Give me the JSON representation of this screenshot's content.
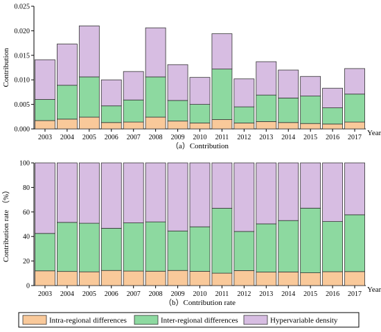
{
  "chart_data": [
    {
      "type": "bar",
      "stacked": true,
      "caption": "（a）Contribution",
      "xlabel": "Year",
      "ylabel": "Contribution",
      "ylim": [
        0,
        0.025
      ],
      "yticks": [
        "0.000",
        "0.005",
        "0.010",
        "0.015",
        "0.020",
        "0.025"
      ],
      "categories": [
        "2003",
        "2004",
        "2005",
        "2006",
        "2007",
        "2008",
        "2009",
        "2010",
        "2011",
        "2012",
        "2013",
        "2014",
        "2015",
        "2016",
        "2017"
      ],
      "series": [
        {
          "name": "Intra-regional differences",
          "values": [
            0.0017,
            0.002,
            0.0024,
            0.0013,
            0.0014,
            0.0024,
            0.0016,
            0.0012,
            0.0019,
            0.0012,
            0.0015,
            0.0013,
            0.0011,
            0.001,
            0.0014
          ]
        },
        {
          "name": "Inter-regional differences",
          "values": [
            0.0043,
            0.0069,
            0.0082,
            0.0034,
            0.0045,
            0.0082,
            0.0042,
            0.0038,
            0.0103,
            0.0033,
            0.0054,
            0.005,
            0.0056,
            0.0033,
            0.0057
          ]
        },
        {
          "name": "Hypervariable density",
          "values": [
            0.0081,
            0.0084,
            0.0104,
            0.0053,
            0.0058,
            0.01,
            0.0073,
            0.0055,
            0.0072,
            0.0057,
            0.0068,
            0.0057,
            0.004,
            0.004,
            0.0052
          ]
        }
      ]
    },
    {
      "type": "bar",
      "stacked": true,
      "caption": "（b）Contribution rate",
      "xlabel": "Year",
      "ylabel": "Contribution rate （%）",
      "ylim": [
        0,
        100
      ],
      "yticks": [
        "0",
        "20",
        "40",
        "60",
        "80",
        "100"
      ],
      "categories": [
        "2003",
        "2004",
        "2005",
        "2006",
        "2007",
        "2008",
        "2009",
        "2010",
        "2011",
        "2012",
        "2013",
        "2014",
        "2015",
        "2016",
        "2017"
      ],
      "series": [
        {
          "name": "Intra-regional differences",
          "values": [
            12,
            11.5,
            11.2,
            12.3,
            11.8,
            11.7,
            12.3,
            11.6,
            10.1,
            12.2,
            11.0,
            11.1,
            10.4,
            11.3,
            11.4
          ]
        },
        {
          "name": "Inter-regional differences",
          "values": [
            30.5,
            40,
            39.6,
            34.4,
            39.3,
            40.2,
            32.2,
            36.3,
            52.9,
            31.9,
            39.3,
            41.9,
            52.7,
            40.9,
            46.3
          ]
        },
        {
          "name": "Hypervariable density",
          "values": [
            57.5,
            48.5,
            49.2,
            53.3,
            48.9,
            48.1,
            55.5,
            52.1,
            37.0,
            55.9,
            49.7,
            47.0,
            36.9,
            47.8,
            42.3
          ]
        }
      ]
    }
  ],
  "legend": {
    "items": [
      {
        "label": "Intra-regional differences",
        "color": "#f9c99a"
      },
      {
        "label": "Inter-regional differences",
        "color": "#8dd9a0"
      },
      {
        "label": "Hypervariable density",
        "color": "#d7bde2"
      }
    ]
  },
  "colors": {
    "intra": "#f9c99a",
    "inter": "#8dd9a0",
    "hyper": "#d7bde2",
    "stroke": "#333333"
  }
}
